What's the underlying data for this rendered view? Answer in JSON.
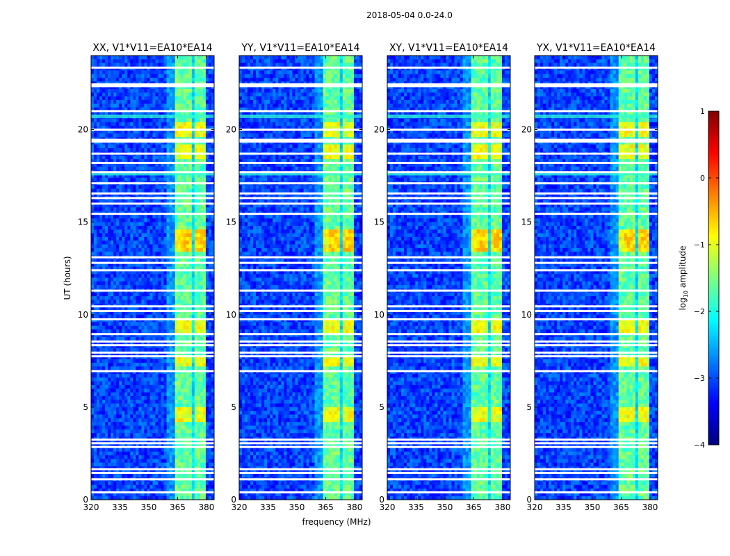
{
  "title": "2018-05-04 0.0-24.0",
  "ylabel": "UT (hours)",
  "xlabel": "frequency (MHz)",
  "colorbar": {
    "label_prefix": "log",
    "label_sub": "10",
    "label_suffix": " amplitude",
    "range": [
      -4,
      1
    ],
    "ticks": [
      1,
      0,
      -1,
      -2,
      -3,
      -4
    ],
    "tick_labels": [
      "1",
      "0",
      "−1",
      "−2",
      "−3",
      "−4"
    ],
    "colors": [
      "#00007f",
      "#0000ff",
      "#007fff",
      "#00ffff",
      "#7fff7f",
      "#ffff00",
      "#ff7f00",
      "#ff0000",
      "#7f0000"
    ]
  },
  "chart_data": [
    {
      "type": "heatmap",
      "title": "XX, V1*V11=EA10*EA14",
      "xlim": [
        320,
        384
      ],
      "ylim": [
        0,
        24
      ],
      "xticks": [
        320,
        335,
        350,
        365,
        380
      ],
      "yticks": [
        0,
        5,
        10,
        15,
        20
      ],
      "flagged_hours": [
        0.4,
        1.1,
        1.45,
        1.65,
        2.85,
        3.05,
        3.25,
        6.95,
        7.75,
        7.95,
        8.35,
        8.55,
        8.95,
        9.75,
        10.2,
        10.45,
        11.3,
        12.4,
        12.8,
        13.1,
        15.45,
        16.0,
        16.3,
        16.55,
        17.1,
        17.7,
        18.2,
        18.7,
        19.35,
        19.45,
        20.0,
        21.0,
        22.35,
        22.45,
        23.35
      ],
      "bright_band_mhz": [
        363,
        380
      ],
      "bright_intervals_hours": [
        [
          4.1,
          5.0
        ],
        [
          7.1,
          7.8
        ],
        [
          9.1,
          9.8
        ],
        [
          13.3,
          14.6
        ],
        [
          18.4,
          19.2
        ],
        [
          19.6,
          20.3
        ]
      ]
    },
    {
      "type": "heatmap",
      "title": "YY, V1*V11=EA10*EA14",
      "xlim": [
        320,
        384
      ],
      "ylim": [
        0,
        24
      ],
      "xticks": [
        320,
        335,
        350,
        365,
        380
      ],
      "yticks": [
        0,
        5,
        10,
        15,
        20
      ],
      "flagged_hours": [
        0.4,
        1.1,
        1.45,
        1.65,
        2.85,
        3.05,
        3.25,
        6.95,
        7.75,
        7.95,
        8.35,
        8.55,
        8.95,
        9.75,
        10.2,
        10.45,
        11.3,
        12.4,
        12.8,
        13.1,
        15.45,
        16.0,
        16.3,
        16.55,
        17.1,
        17.7,
        18.2,
        18.7,
        19.35,
        19.45,
        20.0,
        21.0,
        22.35,
        22.45,
        23.35
      ],
      "bright_band_mhz": [
        363,
        380
      ],
      "bright_intervals_hours": [
        [
          4.1,
          5.0
        ],
        [
          7.1,
          7.8
        ],
        [
          9.1,
          9.8
        ],
        [
          13.3,
          14.6
        ],
        [
          18.4,
          19.2
        ],
        [
          19.6,
          20.3
        ]
      ]
    },
    {
      "type": "heatmap",
      "title": "XY, V1*V11=EA10*EA14",
      "xlim": [
        320,
        384
      ],
      "ylim": [
        0,
        24
      ],
      "xticks": [
        320,
        335,
        350,
        365,
        380
      ],
      "yticks": [
        0,
        5,
        10,
        15,
        20
      ],
      "flagged_hours": [
        0.4,
        1.1,
        1.45,
        1.65,
        2.85,
        3.05,
        3.25,
        6.95,
        7.75,
        7.95,
        8.35,
        8.55,
        8.95,
        9.75,
        10.2,
        10.45,
        11.3,
        12.4,
        12.8,
        13.1,
        15.45,
        16.0,
        16.3,
        16.55,
        17.1,
        17.7,
        18.2,
        18.7,
        19.35,
        19.45,
        20.0,
        21.0,
        22.35,
        22.45,
        23.35
      ],
      "bright_band_mhz": [
        363,
        380
      ],
      "bright_intervals_hours": [
        [
          4.1,
          5.0
        ],
        [
          7.1,
          7.8
        ],
        [
          9.1,
          9.8
        ],
        [
          13.3,
          14.6
        ],
        [
          18.4,
          19.2
        ],
        [
          19.6,
          20.3
        ]
      ]
    },
    {
      "type": "heatmap",
      "title": "YX, V1*V11=EA10*EA14",
      "xlim": [
        320,
        384
      ],
      "ylim": [
        0,
        24
      ],
      "xticks": [
        320,
        335,
        350,
        365,
        380
      ],
      "yticks": [
        0,
        5,
        10,
        15,
        20
      ],
      "flagged_hours": [
        0.4,
        1.1,
        1.45,
        1.65,
        2.85,
        3.05,
        3.25,
        6.95,
        7.75,
        7.95,
        8.35,
        8.55,
        8.95,
        9.75,
        10.2,
        10.45,
        11.3,
        12.4,
        12.8,
        13.1,
        15.45,
        16.0,
        16.3,
        16.55,
        17.1,
        17.7,
        18.2,
        18.7,
        19.35,
        19.45,
        20.0,
        21.0,
        22.35,
        22.45,
        23.35
      ],
      "bright_band_mhz": [
        363,
        380
      ],
      "bright_intervals_hours": [
        [
          4.1,
          5.0
        ],
        [
          7.1,
          7.8
        ],
        [
          9.1,
          9.8
        ],
        [
          13.3,
          14.6
        ],
        [
          18.4,
          19.2
        ],
        [
          19.6,
          20.3
        ]
      ]
    }
  ]
}
